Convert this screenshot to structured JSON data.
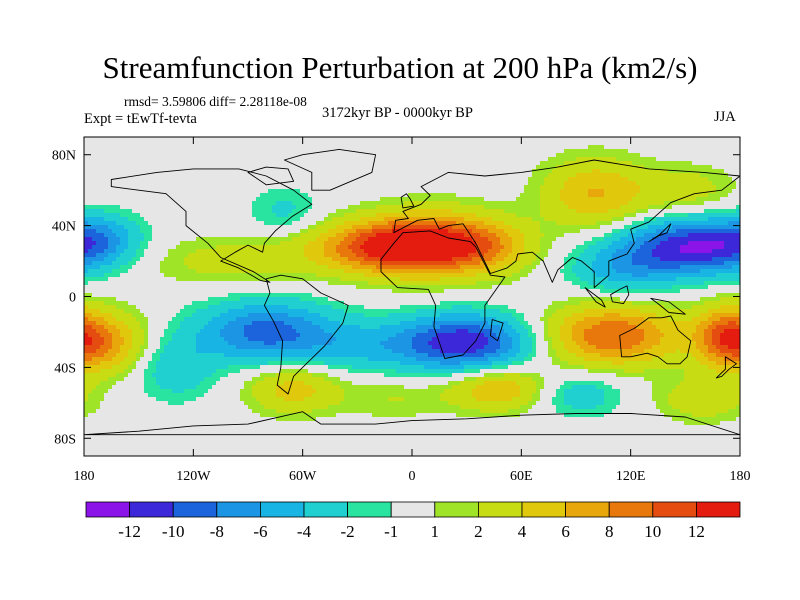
{
  "chart_data": {
    "type": "heatmap",
    "title": "Streamfunction Perturbation at 200 hPa (km2/s)",
    "stats_line": "rmsd= 3.59806 diff= 2.28118e-08",
    "left_label": "Expt = tEwTf-tevta",
    "center_label": "3172kyr BP - 0000kyr BP",
    "right_label": "JJA",
    "x_ticks": [
      {
        "lon": -180,
        "label": "180"
      },
      {
        "lon": -120,
        "label": "120W"
      },
      {
        "lon": -60,
        "label": "60W"
      },
      {
        "lon": 0,
        "label": "0"
      },
      {
        "lon": 60,
        "label": "60E"
      },
      {
        "lon": 120,
        "label": "120E"
      },
      {
        "lon": 180,
        "label": "180"
      }
    ],
    "y_ticks": [
      {
        "lat": 80,
        "label": "80N"
      },
      {
        "lat": 40,
        "label": "40N"
      },
      {
        "lat": 0,
        "label": "0"
      },
      {
        "lat": -40,
        "label": "40S"
      },
      {
        "lat": -80,
        "label": "80S"
      }
    ],
    "xlim": [
      -180,
      180
    ],
    "ylim": [
      -90,
      90
    ],
    "colorbar": {
      "colors": [
        "#8b14e8",
        "#3c28d8",
        "#1c64dc",
        "#1c96e4",
        "#18b4e4",
        "#20d0d0",
        "#28e4a0",
        "#e6e6e6",
        "#a0e428",
        "#c8dc14",
        "#e0c80c",
        "#e8a80c",
        "#e8780c",
        "#e44c10",
        "#e41c10"
      ],
      "labels": [
        "-12",
        "-10",
        "-8",
        "-6",
        "-4",
        "-2",
        "-1",
        "1",
        "2",
        "4",
        "6",
        "8",
        "10",
        "12"
      ]
    },
    "anomalies": [
      {
        "lon": -15,
        "lat": 28,
        "amp": 10,
        "sx": 28,
        "sy": 10
      },
      {
        "lon": 12,
        "lat": 30,
        "amp": 9,
        "sx": 26,
        "sy": 13
      },
      {
        "lon": 42,
        "lat": 28,
        "amp": 4.5,
        "sx": 18,
        "sy": 10
      },
      {
        "lon": 100,
        "lat": 58,
        "amp": 6,
        "sx": 20,
        "sy": 14
      },
      {
        "lon": 155,
        "lat": 28,
        "amp": -12,
        "sx": 28,
        "sy": 11
      },
      {
        "lon": 115,
        "lat": 15,
        "amp": -4.5,
        "sx": 20,
        "sy": 10
      },
      {
        "lon": -172,
        "lat": 33,
        "amp": -4,
        "sx": 15,
        "sy": 10
      },
      {
        "lon": -70,
        "lat": 48,
        "amp": -2.5,
        "sx": 14,
        "sy": 10
      },
      {
        "lon": -100,
        "lat": 20,
        "amp": 2.8,
        "sx": 35,
        "sy": 10
      },
      {
        "lon": 150,
        "lat": 60,
        "amp": 3,
        "sx": 20,
        "sy": 10
      },
      {
        "lon": -130,
        "lat": -40,
        "amp": -3.5,
        "sx": 16,
        "sy": 13
      },
      {
        "lon": -80,
        "lat": -20,
        "amp": -9,
        "sx": 26,
        "sy": 12
      },
      {
        "lon": -30,
        "lat": -28,
        "amp": -3.5,
        "sx": 22,
        "sy": 10
      },
      {
        "lon": 28,
        "lat": -26,
        "amp": -12,
        "sx": 26,
        "sy": 11
      },
      {
        "lon": -172,
        "lat": -26,
        "amp": 8,
        "sx": 18,
        "sy": 12
      },
      {
        "lon": 172,
        "lat": -22,
        "amp": 7,
        "sx": 12,
        "sy": 12
      },
      {
        "lon": -65,
        "lat": -52,
        "amp": 5,
        "sx": 18,
        "sy": 10
      },
      {
        "lon": 48,
        "lat": -52,
        "amp": 6,
        "sx": 20,
        "sy": 9
      },
      {
        "lon": 110,
        "lat": -22,
        "amp": 10,
        "sx": 26,
        "sy": 12
      },
      {
        "lon": 90,
        "lat": -55,
        "amp": -3.5,
        "sx": 18,
        "sy": 9
      },
      {
        "lon": 160,
        "lat": -58,
        "amp": 3.5,
        "sx": 18,
        "sy": 9
      },
      {
        "lon": -10,
        "lat": -58,
        "amp": 2,
        "sx": 20,
        "sy": 8
      }
    ],
    "landmasses": [
      {
        "name": "North America",
        "path": [
          [
            -165,
            66
          ],
          [
            -140,
            70
          ],
          [
            -120,
            72
          ],
          [
            -95,
            72
          ],
          [
            -80,
            68
          ],
          [
            -65,
            60
          ],
          [
            -55,
            52
          ],
          [
            -66,
            45
          ],
          [
            -75,
            37
          ],
          [
            -81,
            30
          ],
          [
            -82,
            25
          ],
          [
            -90,
            29
          ],
          [
            -97,
            25
          ],
          [
            -105,
            20
          ],
          [
            -95,
            16
          ],
          [
            -83,
            9
          ],
          [
            -78,
            8
          ],
          [
            -87,
            14
          ],
          [
            -105,
            22
          ],
          [
            -112,
            30
          ],
          [
            -124,
            40
          ],
          [
            -124,
            48
          ],
          [
            -135,
            58
          ],
          [
            -150,
            60
          ],
          [
            -165,
            62
          ]
        ]
      },
      {
        "name": "Greenland",
        "path": [
          [
            -55,
            60
          ],
          [
            -45,
            60
          ],
          [
            -22,
            70
          ],
          [
            -20,
            80
          ],
          [
            -40,
            83
          ],
          [
            -60,
            80
          ],
          [
            -70,
            77
          ],
          [
            -55,
            70
          ]
        ]
      },
      {
        "name": "South America",
        "path": [
          [
            -80,
            10
          ],
          [
            -72,
            12
          ],
          [
            -60,
            10
          ],
          [
            -50,
            2
          ],
          [
            -35,
            -5
          ],
          [
            -38,
            -15
          ],
          [
            -48,
            -28
          ],
          [
            -58,
            -38
          ],
          [
            -65,
            -45
          ],
          [
            -68,
            -55
          ],
          [
            -74,
            -50
          ],
          [
            -72,
            -40
          ],
          [
            -71,
            -25
          ],
          [
            -76,
            -14
          ],
          [
            -81,
            -5
          ],
          [
            -78,
            2
          ]
        ]
      },
      {
        "name": "Africa",
        "path": [
          [
            -17,
            21
          ],
          [
            -10,
            30
          ],
          [
            -5,
            36
          ],
          [
            10,
            37
          ],
          [
            20,
            33
          ],
          [
            32,
            31
          ],
          [
            35,
            28
          ],
          [
            43,
            12
          ],
          [
            51,
            11
          ],
          [
            40,
            -5
          ],
          [
            40,
            -15
          ],
          [
            35,
            -25
          ],
          [
            28,
            -33
          ],
          [
            18,
            -35
          ],
          [
            12,
            -17
          ],
          [
            13,
            -5
          ],
          [
            9,
            4
          ],
          [
            -8,
            5
          ],
          [
            -17,
            14
          ]
        ]
      },
      {
        "name": "Eurasia",
        "path": [
          [
            -10,
            36
          ],
          [
            -9,
            43
          ],
          [
            -2,
            44
          ],
          [
            -5,
            48
          ],
          [
            5,
            52
          ],
          [
            10,
            57
          ],
          [
            5,
            62
          ],
          [
            20,
            70
          ],
          [
            40,
            68
          ],
          [
            60,
            70
          ],
          [
            80,
            73
          ],
          [
            100,
            77
          ],
          [
            130,
            72
          ],
          [
            160,
            70
          ],
          [
            180,
            68
          ],
          [
            170,
            60
          ],
          [
            155,
            58
          ],
          [
            142,
            53
          ],
          [
            130,
            42
          ],
          [
            120,
            38
          ],
          [
            122,
            30
          ],
          [
            118,
            24
          ],
          [
            108,
            20
          ],
          [
            108,
            12
          ],
          [
            100,
            5
          ],
          [
            100,
            14
          ],
          [
            93,
            20
          ],
          [
            88,
            22
          ],
          [
            80,
            15
          ],
          [
            77,
            8
          ],
          [
            72,
            20
          ],
          [
            66,
            25
          ],
          [
            58,
            24
          ],
          [
            57,
            20
          ],
          [
            52,
            16
          ],
          [
            43,
            13
          ],
          [
            35,
            30
          ],
          [
            28,
            41
          ],
          [
            20,
            40
          ],
          [
            15,
            38
          ],
          [
            12,
            44
          ],
          [
            3,
            43
          ]
        ]
      },
      {
        "name": "Australia",
        "path": [
          [
            114,
            -22
          ],
          [
            122,
            -18
          ],
          [
            130,
            -12
          ],
          [
            137,
            -12
          ],
          [
            142,
            -11
          ],
          [
            146,
            -19
          ],
          [
            153,
            -25
          ],
          [
            151,
            -34
          ],
          [
            147,
            -38
          ],
          [
            140,
            -38
          ],
          [
            135,
            -34
          ],
          [
            129,
            -32
          ],
          [
            120,
            -34
          ],
          [
            115,
            -34
          ]
        ]
      },
      {
        "name": "Antarctica",
        "path": [
          [
            -180,
            -78
          ],
          [
            -150,
            -76
          ],
          [
            -120,
            -73
          ],
          [
            -90,
            -72
          ],
          [
            -60,
            -65
          ],
          [
            -50,
            -72
          ],
          [
            -20,
            -72
          ],
          [
            0,
            -70
          ],
          [
            30,
            -69
          ],
          [
            60,
            -67
          ],
          [
            90,
            -66
          ],
          [
            120,
            -66
          ],
          [
            150,
            -68
          ],
          [
            180,
            -78
          ]
        ]
      },
      {
        "name": "Borneo",
        "path": [
          [
            109,
            1
          ],
          [
            114,
            4
          ],
          [
            118,
            6
          ],
          [
            119,
            1
          ],
          [
            116,
            -4
          ],
          [
            110,
            -3
          ]
        ]
      },
      {
        "name": "Sumatra",
        "path": [
          [
            95,
            5
          ],
          [
            104,
            -2
          ],
          [
            106,
            -6
          ],
          [
            101,
            -3
          ]
        ]
      },
      {
        "name": "New Guinea",
        "path": [
          [
            131,
            -1
          ],
          [
            141,
            -3
          ],
          [
            150,
            -10
          ],
          [
            141,
            -9
          ],
          [
            135,
            -4
          ]
        ]
      },
      {
        "name": "Madagascar",
        "path": [
          [
            44,
            -13
          ],
          [
            50,
            -15
          ],
          [
            47,
            -25
          ],
          [
            43,
            -22
          ]
        ]
      },
      {
        "name": "Japan",
        "path": [
          [
            130,
            31
          ],
          [
            135,
            34
          ],
          [
            140,
            36
          ],
          [
            142,
            41
          ],
          [
            140,
            39
          ],
          [
            136,
            35
          ]
        ]
      },
      {
        "name": "Great Britain",
        "path": [
          [
            -5,
            50
          ],
          [
            1,
            51
          ],
          [
            -1,
            55
          ],
          [
            -3,
            58
          ],
          [
            -6,
            56
          ]
        ]
      },
      {
        "name": "New Zealand",
        "path": [
          [
            172,
            -34
          ],
          [
            178,
            -38
          ],
          [
            174,
            -41
          ],
          [
            170,
            -45
          ],
          [
            167,
            -46
          ],
          [
            172,
            -41
          ]
        ]
      },
      {
        "name": "Baffin Island",
        "path": [
          [
            -80,
            63
          ],
          [
            -65,
            65
          ],
          [
            -68,
            72
          ],
          [
            -80,
            73
          ],
          [
            -90,
            70
          ]
        ]
      }
    ]
  }
}
